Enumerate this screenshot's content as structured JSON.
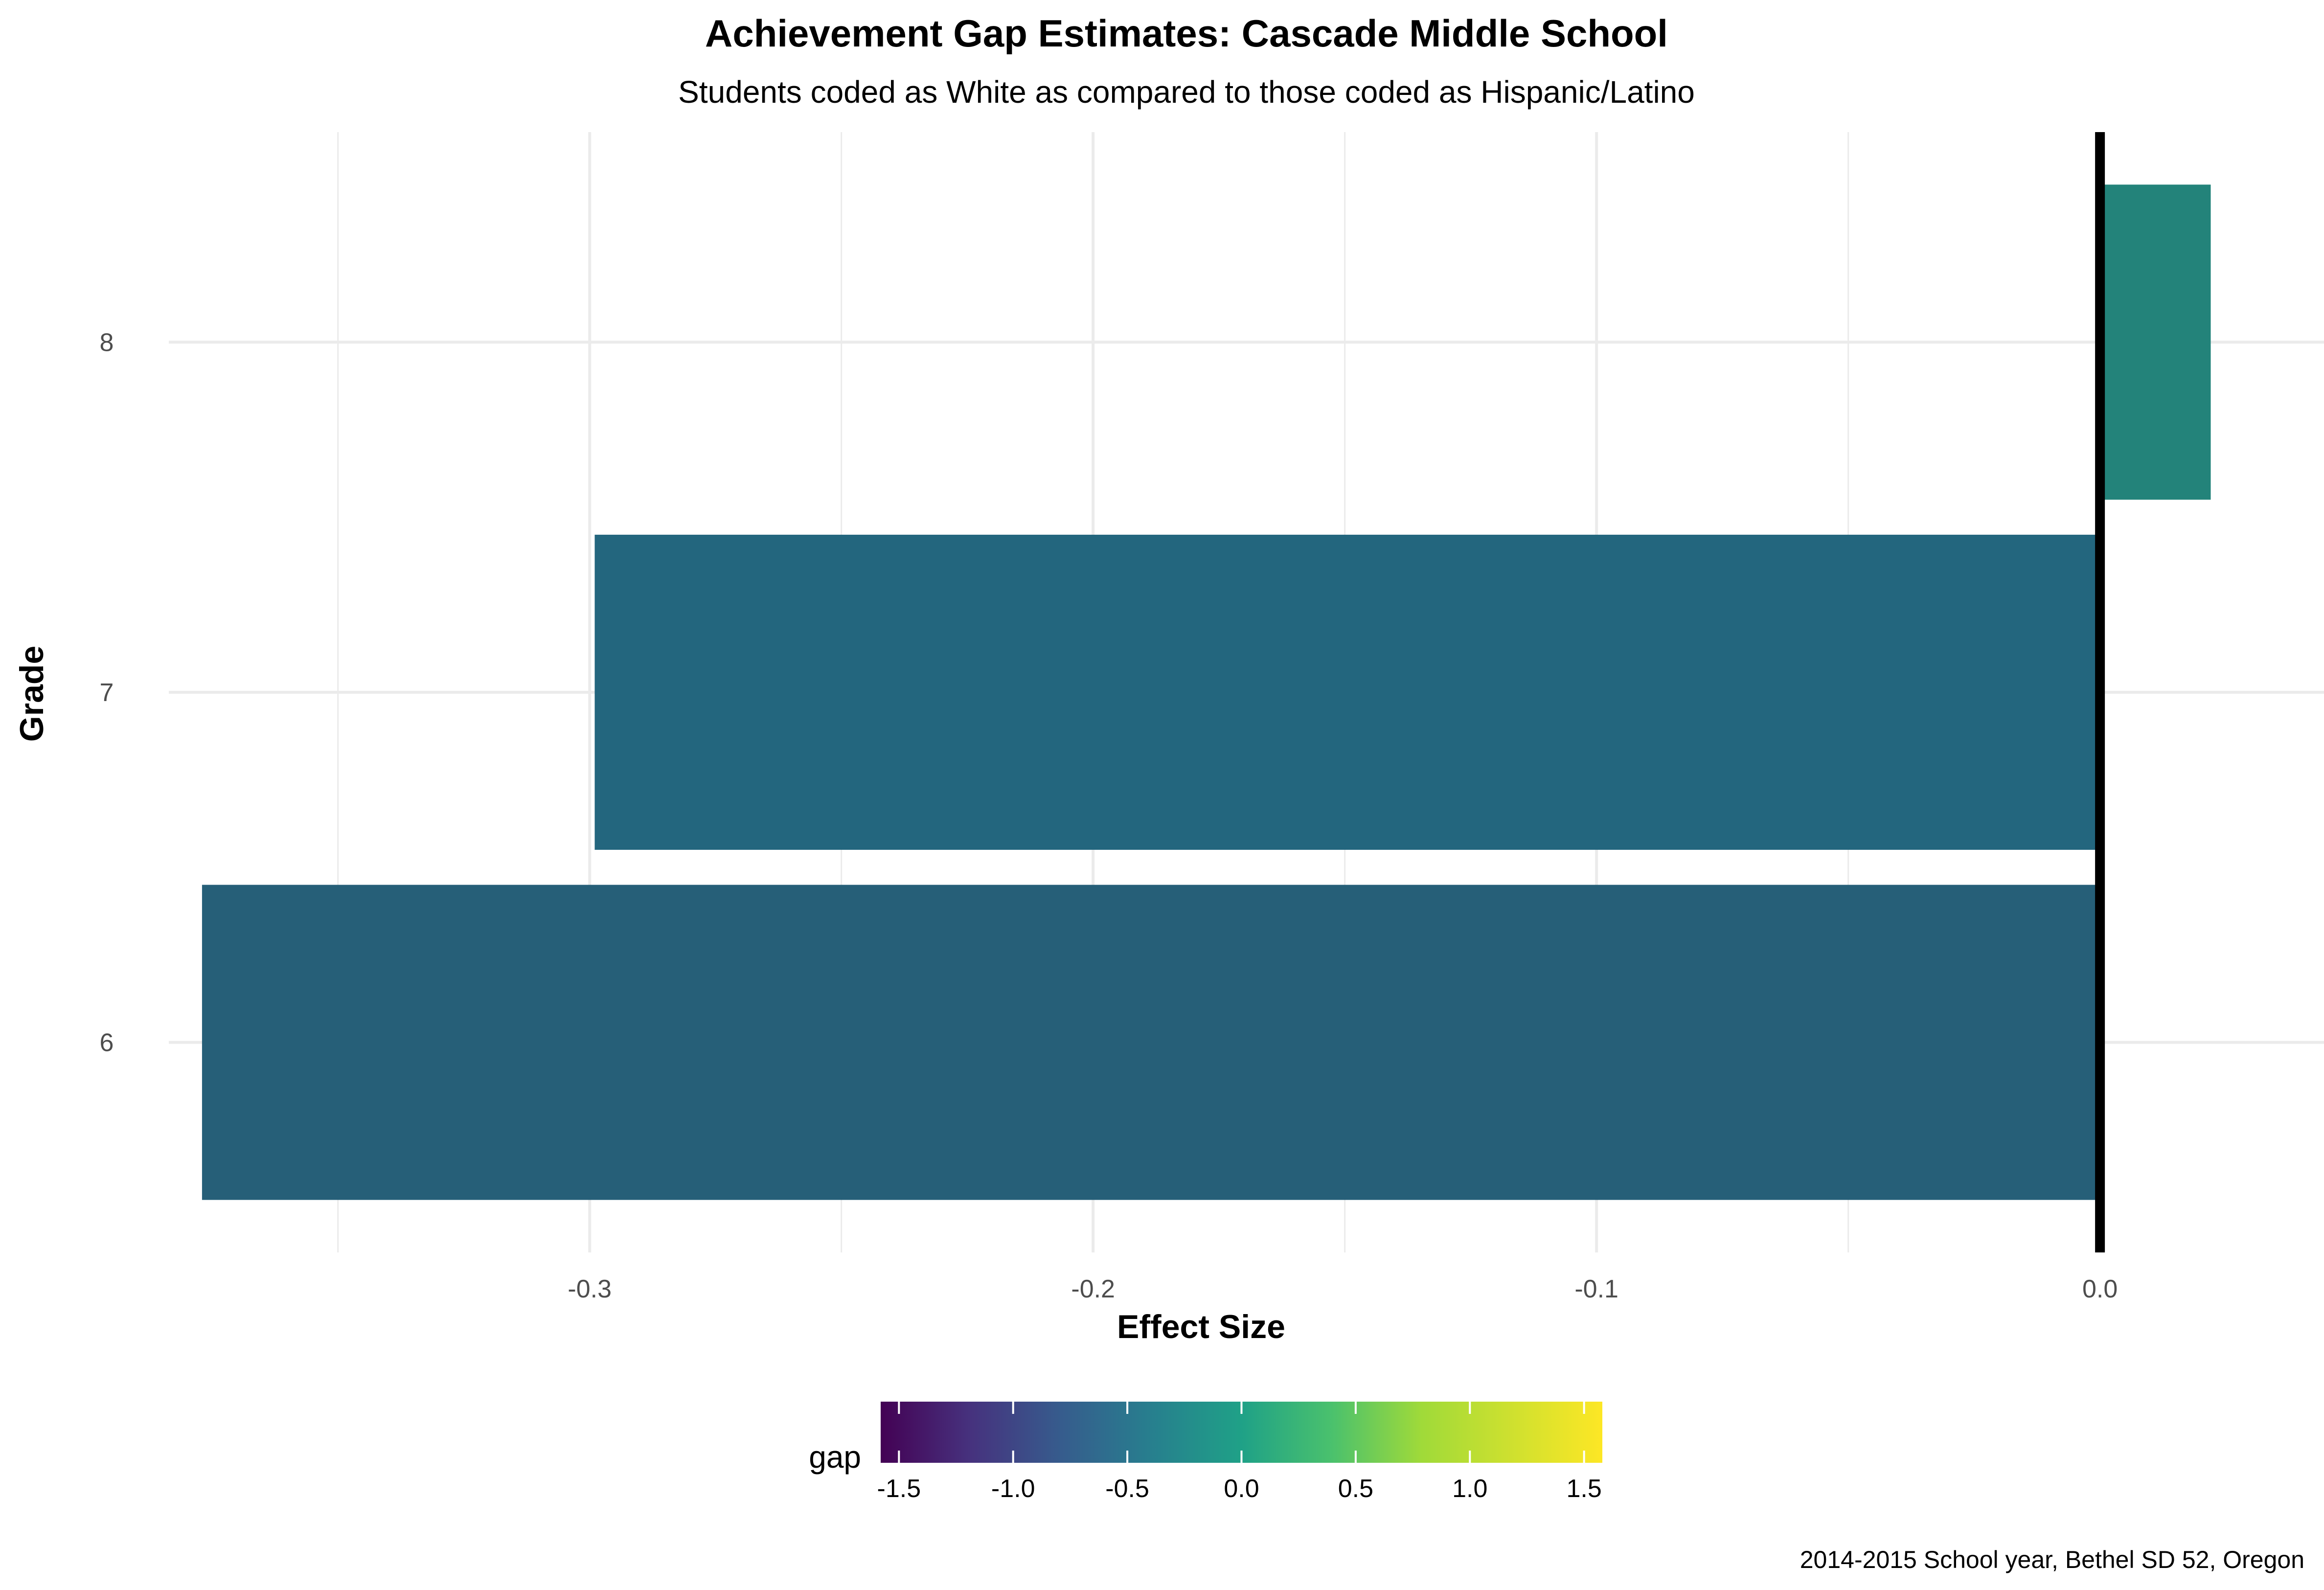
{
  "chart_data": {
    "type": "bar",
    "orientation": "horizontal",
    "title": "Achievement Gap Estimates: Cascade Middle School",
    "subtitle": "Students coded as White as compared to those coded as Hispanic/Latino",
    "xlabel": "Effect Size",
    "ylabel": "Grade",
    "caption": "2014-2015 School year, Bethel SD 52, Oregon",
    "categories": [
      "6",
      "7",
      "8"
    ],
    "values": [
      -0.377,
      -0.299,
      0.022
    ],
    "colors": [
      "#265F78",
      "#23667E",
      "#23837A"
    ],
    "xlim": [
      -0.3836,
      0.0445
    ],
    "x_ticks": [
      -0.3,
      -0.2,
      -0.1,
      0.0
    ],
    "x_tick_labels": [
      "-0.3",
      "-0.2",
      "-0.1",
      "0.0"
    ],
    "reference_line": 0,
    "grid": true,
    "legend": {
      "title": "gap",
      "type": "colorbar",
      "palette": "viridis",
      "range": [
        -1.58,
        1.58
      ],
      "ticks": [
        -1.5,
        -1.0,
        -0.5,
        0.0,
        0.5,
        1.0,
        1.5
      ],
      "tick_labels": [
        "-1.5",
        "-1.0",
        "-0.5",
        "0.0",
        "0.5",
        "1.0",
        "1.5"
      ],
      "position": "bottom"
    }
  }
}
